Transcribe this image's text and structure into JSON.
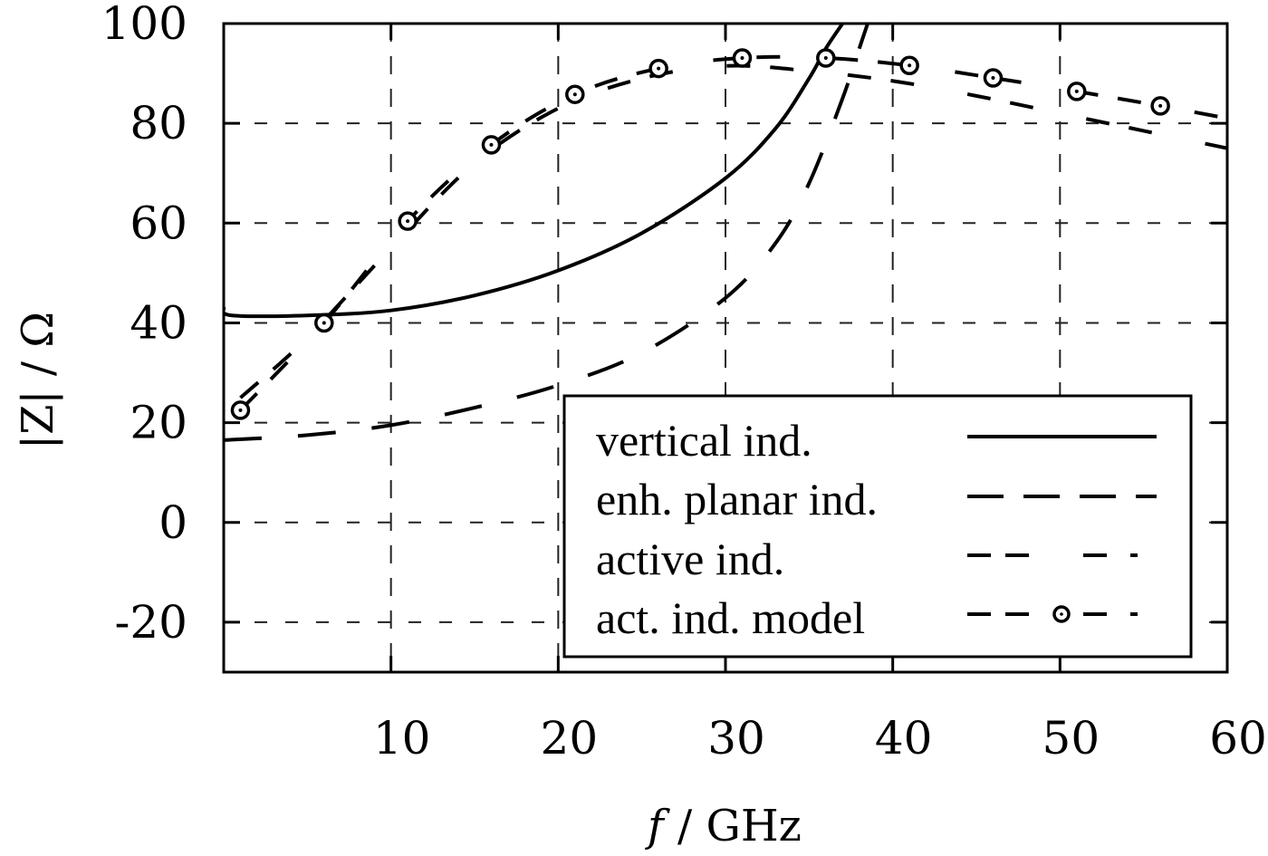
{
  "chart_data": {
    "type": "line",
    "title": "",
    "xlabel": "f / GHz",
    "ylabel": "|Z| / Ω",
    "xlim": [
      0,
      60
    ],
    "ylim": [
      -30,
      100
    ],
    "x_ticks": [
      10,
      20,
      30,
      40,
      50,
      60
    ],
    "x_tick_labels": [
      "10",
      "20",
      "30",
      "40",
      "50",
      "60"
    ],
    "y_ticks": [
      -20,
      0,
      20,
      40,
      60,
      80,
      100
    ],
    "y_tick_labels": [
      "-20",
      "0",
      "20",
      "40",
      "60",
      "80",
      "100"
    ],
    "grid": true,
    "legend_position": "lower right",
    "series": [
      {
        "name": "vertical ind.",
        "style": "solid",
        "x": [
          0,
          0.5,
          5,
          10,
          15,
          20,
          25,
          30,
          33,
          35,
          36,
          37
        ],
        "values": [
          43,
          41.5,
          41.5,
          42.5,
          45.5,
          50.5,
          58,
          69,
          79,
          89,
          95,
          100
        ]
      },
      {
        "name": "enh. planar ind.",
        "style": "long-dash",
        "x": [
          0,
          5,
          10,
          15,
          20,
          25,
          30,
          33,
          35,
          37,
          38,
          38.5
        ],
        "values": [
          16.5,
          17.5,
          19.5,
          23,
          27.5,
          34,
          45,
          56,
          68,
          85,
          95,
          100
        ]
      },
      {
        "name": "active ind.",
        "style": "dash",
        "x": [
          1,
          5,
          10,
          15,
          20,
          25,
          30,
          35,
          40,
          45,
          50,
          55,
          60
        ],
        "values": [
          25,
          37,
          55,
          72,
          83,
          89,
          91.5,
          90.5,
          88.5,
          85.5,
          82,
          78.5,
          75
        ]
      },
      {
        "name": "act. ind. model",
        "style": "dash-circle-markers",
        "x": [
          1,
          6,
          11,
          16,
          21,
          26,
          31,
          36,
          41,
          46,
          51,
          56,
          60
        ],
        "values": [
          22.5,
          40,
          60.4,
          75.7,
          85.8,
          91,
          93.1,
          93.1,
          91.6,
          89.1,
          86.4,
          83.5,
          81
        ],
        "markers_x": [
          1,
          6,
          11,
          16,
          21,
          26,
          31,
          36,
          41,
          46,
          51,
          56
        ]
      }
    ]
  },
  "legend": {
    "items": [
      {
        "label": "vertical ind."
      },
      {
        "label": "enh. planar ind."
      },
      {
        "label": "active ind."
      },
      {
        "label": "act. ind. model"
      }
    ]
  },
  "axes": {
    "xlabel_italic": "f",
    "xlabel_unit": " / GHz",
    "ylabel_text": "|Z| / Ω"
  }
}
